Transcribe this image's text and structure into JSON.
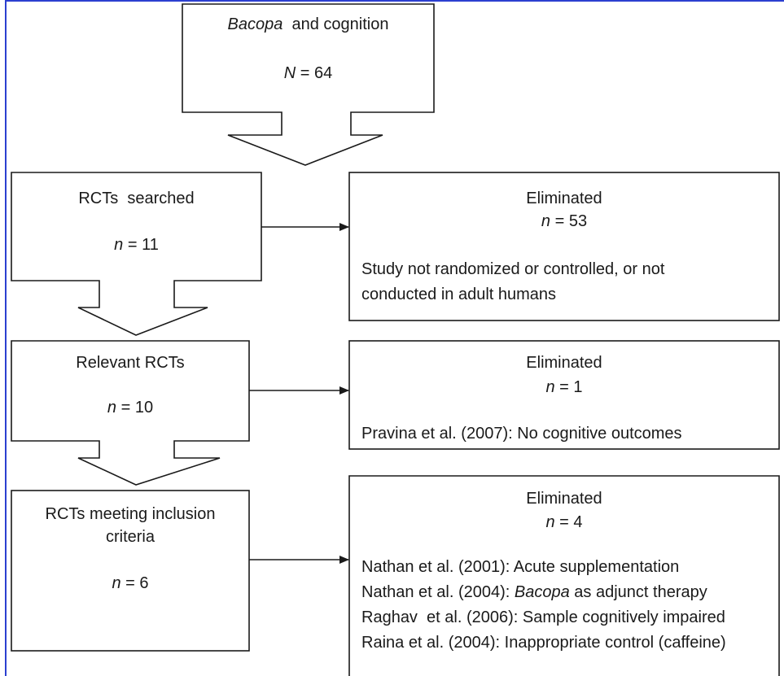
{
  "flow": {
    "box1": {
      "title_italic": "Bacopa",
      "title_rest": "and cognition",
      "count_symbol": "N",
      "count_rest": " = 64"
    },
    "box2": {
      "title": "RCTs  searched",
      "count_symbol": "n",
      "count_rest": " = 11"
    },
    "box3": {
      "title": "Relevant RCTs",
      "count_symbol": "n",
      "count_rest": " = 10"
    },
    "box4": {
      "title_line1": "RCTs meeting inclusion",
      "title_line2": "criteria",
      "count_symbol": "n",
      "count_rest": " = 6"
    },
    "elim1": {
      "title": "Eliminated",
      "count_symbol": "n",
      "count_rest": " = 53",
      "reason_line1": "Study not randomized or controlled, or not",
      "reason_line2": "conducted in adult humans"
    },
    "elim2": {
      "title": "Eliminated",
      "count_symbol": "n",
      "count_rest": " = 1",
      "reason": "Pravina et al. (2007): No cognitive outcomes"
    },
    "elim3": {
      "title": "Eliminated",
      "count_symbol": "n",
      "count_rest": " = 4",
      "reason1": "Nathan et al. (2001): Acute supplementation",
      "reason2_pre": "Nathan et al. (2004): ",
      "reason2_italic": "Bacopa",
      "reason2_post": " as adjunct therapy",
      "reason3": "Raghav  et al. (2006): Sample cognitively impaired",
      "reason4": "Raina et al. (2004): Inappropriate control (caffeine)"
    }
  },
  "colors": {
    "frame_border": "#2b3fd0",
    "stroke": "#1a1a1a",
    "background": "#ffffff"
  }
}
